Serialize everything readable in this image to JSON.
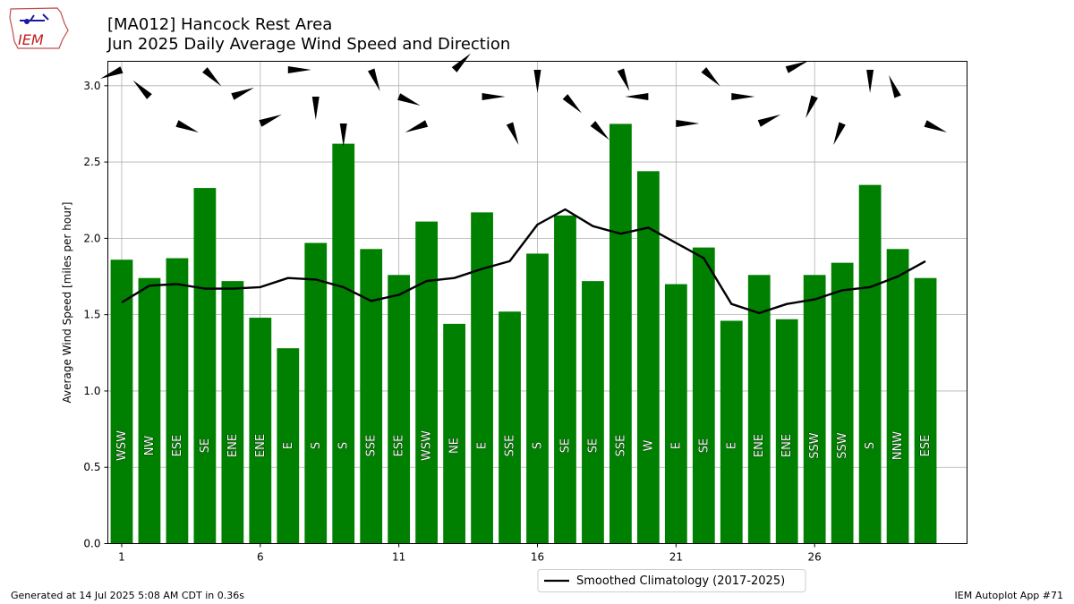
{
  "header": {
    "title_line1": "[MA012] Hancock Rest Area",
    "title_line2": "Jun 2025 Daily Average Wind Speed and Direction"
  },
  "logo": {
    "text": "IEM",
    "icon": "iowa-state-outline-logo"
  },
  "footer": {
    "generated": "Generated at 14 Jul 2025 5:08 AM CDT in 0.36s",
    "app": "IEM Autoplot App #71"
  },
  "colors": {
    "bar": "#008000",
    "climatology_line": "#000000",
    "grid": "#b0b0b0"
  },
  "chart_data": {
    "type": "bar",
    "ylabel": "Average Wind Speed [miles per hour]",
    "ylim": [
      0,
      3.16
    ],
    "xlim": [
      0.5,
      31.5
    ],
    "grid": true,
    "legend_position": "bottom-center",
    "x_ticks": [
      1,
      6,
      11,
      16,
      21,
      26
    ],
    "y_ticks": [
      "0.0",
      "0.5",
      "1.0",
      "1.5",
      "2.0",
      "2.5",
      "3.0"
    ],
    "days": [
      1,
      2,
      3,
      4,
      5,
      6,
      7,
      8,
      9,
      10,
      11,
      12,
      13,
      14,
      15,
      16,
      17,
      18,
      19,
      20,
      21,
      22,
      23,
      24,
      25,
      26,
      27,
      28,
      29,
      30
    ],
    "series": [
      {
        "values": [
          1.86,
          1.74,
          1.87,
          2.33,
          1.72,
          1.48,
          1.28,
          1.97,
          2.62,
          1.93,
          1.76,
          2.11,
          1.44,
          2.17,
          1.52,
          1.9,
          2.15,
          1.72,
          2.75,
          2.44,
          1.7,
          1.94,
          1.46,
          1.76,
          1.47,
          1.76,
          1.84,
          2.35,
          1.93,
          1.74
        ],
        "directions": [
          "WSW",
          "NW",
          "ESE",
          "SE",
          "ENE",
          "ENE",
          "E",
          "S",
          "S",
          "SSE",
          "ESE",
          "WSW",
          "NE",
          "E",
          "SSE",
          "S",
          "SE",
          "SE",
          "SSE",
          "W",
          "E",
          "SE",
          "E",
          "ENE",
          "ENE",
          "SSW",
          "SSW",
          "S",
          "NNW",
          "ESE"
        ],
        "wind_barb_speeds_mph": [
          1.86,
          1.74,
          1.87,
          2.33,
          1.72,
          1.48,
          1.28,
          1.97,
          2.62,
          1.93,
          1.76,
          2.11,
          1.44,
          2.17,
          1.52,
          1.9,
          2.15,
          1.72,
          2.75,
          2.44,
          1.7,
          1.94,
          1.46,
          1.76,
          1.47,
          1.76,
          1.84,
          2.35,
          1.93,
          1.74
        ]
      },
      {
        "name": "Smoothed Climatology (2017-2025)",
        "type": "line",
        "values": [
          1.58,
          1.69,
          1.7,
          1.67,
          1.67,
          1.68,
          1.74,
          1.73,
          1.68,
          1.59,
          1.63,
          1.72,
          1.74,
          1.8,
          1.85,
          2.09,
          2.19,
          2.08,
          2.03,
          2.07,
          1.97,
          1.87,
          1.57,
          1.51,
          1.57,
          1.6,
          1.66,
          1.68,
          1.75,
          1.85
        ]
      }
    ]
  }
}
